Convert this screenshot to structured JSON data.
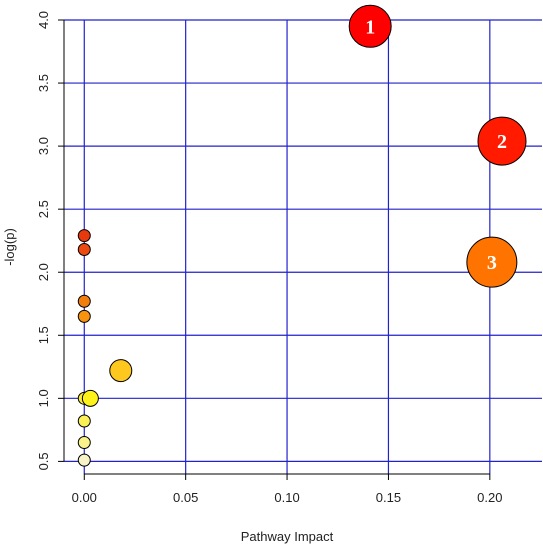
{
  "chart_data": {
    "type": "scatter",
    "xlabel": "Pathway Impact",
    "ylabel": "-log(p)",
    "xlim": [
      -0.01,
      0.206
    ],
    "ylim": [
      0.4,
      4.0
    ],
    "x_ticks": [
      0.0,
      0.05,
      0.1,
      0.15,
      0.2
    ],
    "x_tick_labels": [
      "0.00",
      "0.05",
      "0.10",
      "0.15",
      "0.20"
    ],
    "y_ticks": [
      0.5,
      1.0,
      1.5,
      2.0,
      2.5,
      3.0,
      3.5,
      4.0
    ],
    "y_tick_labels": [
      "0.5",
      "1.0",
      "1.5",
      "2.0",
      "2.5",
      "3.0",
      "3.5",
      "4.0"
    ],
    "grid": true,
    "grid_color": "#2222cc",
    "points": [
      {
        "x": 0.141,
        "y": 3.95,
        "size": 21,
        "color": "#ff0000",
        "label": "1"
      },
      {
        "x": 0.206,
        "y": 3.04,
        "size": 24,
        "color": "#ff1a00",
        "label": "2"
      },
      {
        "x": 0.201,
        "y": 2.08,
        "size": 25,
        "color": "#ff7300",
        "label": "3"
      },
      {
        "x": 0.0,
        "y": 2.29,
        "size": 6,
        "color": "#e8380d",
        "label": ""
      },
      {
        "x": 0.0,
        "y": 2.18,
        "size": 6,
        "color": "#ec4a10",
        "label": ""
      },
      {
        "x": 0.0,
        "y": 1.77,
        "size": 6,
        "color": "#f27e0e",
        "label": ""
      },
      {
        "x": 0.0,
        "y": 1.65,
        "size": 6,
        "color": "#f7930f",
        "label": ""
      },
      {
        "x": 0.018,
        "y": 1.22,
        "size": 11,
        "color": "#ffc81e",
        "label": ""
      },
      {
        "x": 0.0,
        "y": 1.0,
        "size": 6,
        "color": "#fbeb38",
        "label": ""
      },
      {
        "x": 0.003,
        "y": 1.0,
        "size": 8,
        "color": "#fff21a",
        "label": ""
      },
      {
        "x": 0.0,
        "y": 0.82,
        "size": 6,
        "color": "#fbf055",
        "label": ""
      },
      {
        "x": 0.0,
        "y": 0.65,
        "size": 6,
        "color": "#faf389",
        "label": ""
      },
      {
        "x": 0.0,
        "y": 0.51,
        "size": 6,
        "color": "#f8f4c8",
        "label": ""
      }
    ]
  }
}
